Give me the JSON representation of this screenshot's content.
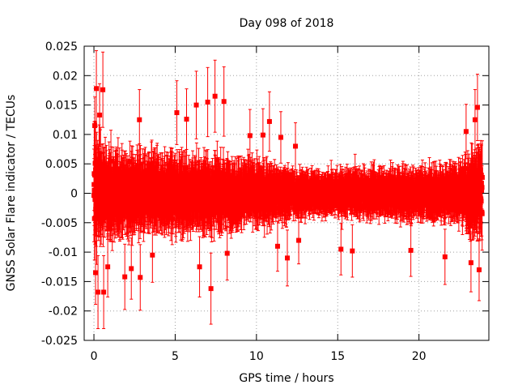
{
  "chart_data": {
    "type": "scatter",
    "title": "Day 098 of 2018",
    "xlabel": "GPS time / hours",
    "ylabel": "GNSS Solar Flare indicator / TECUs",
    "xlim": [
      -0.6,
      24.3
    ],
    "ylim": [
      -0.025,
      0.025
    ],
    "xticks": [
      0,
      5,
      10,
      15,
      20
    ],
    "xtick_labels": [
      "0",
      "5",
      "10",
      "15",
      "20"
    ],
    "yticks": [
      -0.025,
      -0.02,
      -0.015,
      -0.01,
      -0.005,
      0,
      0.005,
      0.01,
      0.015,
      0.02,
      0.025
    ],
    "ytick_labels": [
      "-0.025",
      "-0.02",
      "-0.015",
      "-0.01",
      "-0.005",
      "0",
      "0.005",
      "0.01",
      "0.015",
      "0.02",
      "0.025"
    ],
    "grid": true,
    "series": [
      {
        "name": "solar flare indicator",
        "color": "#ff0000",
        "marker": "square",
        "error_bars": true,
        "x_range": [
          0,
          23.9
        ],
        "sample_interval_hours": 0.0083,
        "spread_profile": [
          {
            "x": 0.0,
            "sd": 0.0085
          },
          {
            "x": 0.5,
            "sd": 0.0065
          },
          {
            "x": 2.0,
            "sd": 0.0055
          },
          {
            "x": 5.0,
            "sd": 0.0052
          },
          {
            "x": 7.5,
            "sd": 0.005
          },
          {
            "x": 10.0,
            "sd": 0.0042
          },
          {
            "x": 13.0,
            "sd": 0.003
          },
          {
            "x": 16.0,
            "sd": 0.0032
          },
          {
            "x": 20.0,
            "sd": 0.0035
          },
          {
            "x": 22.5,
            "sd": 0.004
          },
          {
            "x": 23.9,
            "sd": 0.007
          }
        ],
        "notable_points": [
          {
            "x": 0.05,
            "y": 0.0115
          },
          {
            "x": 0.15,
            "y": 0.0178
          },
          {
            "x": 0.25,
            "y": -0.0168
          },
          {
            "x": 0.35,
            "y": 0.0133
          },
          {
            "x": 0.55,
            "y": 0.0176
          },
          {
            "x": 0.6,
            "y": -0.0168
          },
          {
            "x": 0.1,
            "y": -0.0135
          },
          {
            "x": 0.85,
            "y": -0.0125
          },
          {
            "x": 1.9,
            "y": -0.0142
          },
          {
            "x": 2.3,
            "y": -0.0128
          },
          {
            "x": 2.8,
            "y": 0.0125
          },
          {
            "x": 2.85,
            "y": -0.0143
          },
          {
            "x": 3.6,
            "y": -0.0105
          },
          {
            "x": 5.1,
            "y": 0.0137
          },
          {
            "x": 5.7,
            "y": 0.0126
          },
          {
            "x": 6.3,
            "y": 0.015
          },
          {
            "x": 6.5,
            "y": -0.0125
          },
          {
            "x": 7.0,
            "y": 0.0155
          },
          {
            "x": 7.2,
            "y": -0.0162
          },
          {
            "x": 7.45,
            "y": 0.0165
          },
          {
            "x": 8.0,
            "y": 0.0156
          },
          {
            "x": 8.2,
            "y": -0.0102
          },
          {
            "x": 9.6,
            "y": 0.0098
          },
          {
            "x": 10.4,
            "y": 0.0099
          },
          {
            "x": 10.8,
            "y": 0.0122
          },
          {
            "x": 11.3,
            "y": -0.009
          },
          {
            "x": 11.5,
            "y": 0.0095
          },
          {
            "x": 11.9,
            "y": -0.011
          },
          {
            "x": 12.4,
            "y": 0.008
          },
          {
            "x": 12.6,
            "y": -0.008
          },
          {
            "x": 15.2,
            "y": -0.0095
          },
          {
            "x": 15.9,
            "y": -0.0098
          },
          {
            "x": 19.5,
            "y": -0.0097
          },
          {
            "x": 21.6,
            "y": -0.0108
          },
          {
            "x": 22.9,
            "y": 0.0105
          },
          {
            "x": 23.2,
            "y": -0.0118
          },
          {
            "x": 23.45,
            "y": 0.0125
          },
          {
            "x": 23.6,
            "y": 0.0146
          },
          {
            "x": 23.7,
            "y": -0.013
          }
        ]
      }
    ]
  }
}
